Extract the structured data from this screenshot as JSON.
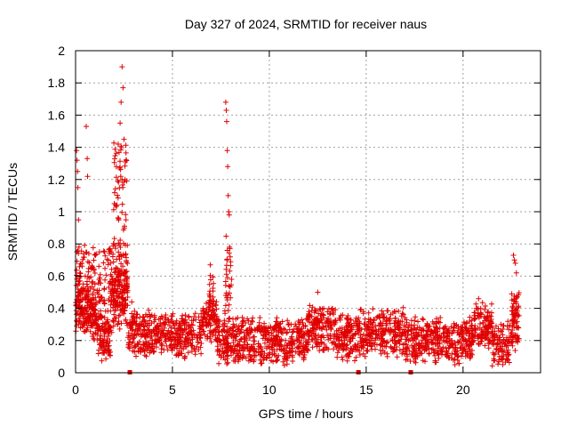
{
  "chart_data": {
    "type": "scatter",
    "title": "Day 327 of 2024, SRMTID for receiver naus",
    "xlabel": "GPS time / hours",
    "ylabel": "SRMTID / TECUs",
    "xlim": [
      0,
      24
    ],
    "ylim": [
      0,
      2
    ],
    "xticks": [
      0,
      5,
      10,
      15,
      20
    ],
    "xtick_labels": [
      "0",
      "5",
      "10",
      "15",
      "20"
    ],
    "yticks": [
      0,
      0.2,
      0.4,
      0.6,
      0.8,
      1,
      1.2,
      1.4,
      1.6,
      1.8,
      2
    ],
    "ytick_labels": [
      "0",
      "0.2",
      "0.4",
      "0.6",
      "0.8",
      "1",
      "1.2",
      "1.4",
      "1.6",
      "1.8",
      "2"
    ],
    "grid": true,
    "marker": "+",
    "color": "#e00000",
    "baseline_markers_x": [
      2.8,
      14.6,
      17.3
    ],
    "anchor_points": [
      [
        0.05,
        1.38
      ],
      [
        0.08,
        1.32
      ],
      [
        0.1,
        1.25
      ],
      [
        0.12,
        1.15
      ],
      [
        0.15,
        0.95
      ],
      [
        0.18,
        0.78
      ],
      [
        0.22,
        0.62
      ],
      [
        0.3,
        0.52
      ],
      [
        0.5,
        0.6
      ],
      [
        0.55,
        1.53
      ],
      [
        0.6,
        1.33
      ],
      [
        0.62,
        1.22
      ],
      [
        1.0,
        0.55
      ],
      [
        1.5,
        0.45
      ],
      [
        2.0,
        1.05
      ],
      [
        2.1,
        1.28
      ],
      [
        2.2,
        1.42
      ],
      [
        2.3,
        1.55
      ],
      [
        2.35,
        1.68
      ],
      [
        2.4,
        1.9
      ],
      [
        2.45,
        1.77
      ],
      [
        2.5,
        1.45
      ],
      [
        2.55,
        1.2
      ],
      [
        2.6,
        0.95
      ],
      [
        2.65,
        0.63
      ],
      [
        2.9,
        0.44
      ],
      [
        6.95,
        0.67
      ],
      [
        7.1,
        0.47
      ],
      [
        7.75,
        1.68
      ],
      [
        7.78,
        1.63
      ],
      [
        7.8,
        1.56
      ],
      [
        7.83,
        1.38
      ],
      [
        7.85,
        1.28
      ],
      [
        7.88,
        1.1
      ],
      [
        7.9,
        1.0
      ],
      [
        7.93,
        0.98
      ],
      [
        7.95,
        0.78
      ],
      [
        7.98,
        0.72
      ],
      [
        8.05,
        0.58
      ],
      [
        12.5,
        0.5
      ],
      [
        20.8,
        0.46
      ],
      [
        22.6,
        0.73
      ],
      [
        22.65,
        0.7
      ],
      [
        22.7,
        0.68
      ],
      [
        22.75,
        0.62
      ],
      [
        22.8,
        0.47
      ]
    ],
    "series_summary": "Dense scatter of several thousand points, mostly 0.1-0.4 TECU across 0-23 h, with activity bursts near 0-3 h, 7-8 h and 22.5-23 h"
  }
}
